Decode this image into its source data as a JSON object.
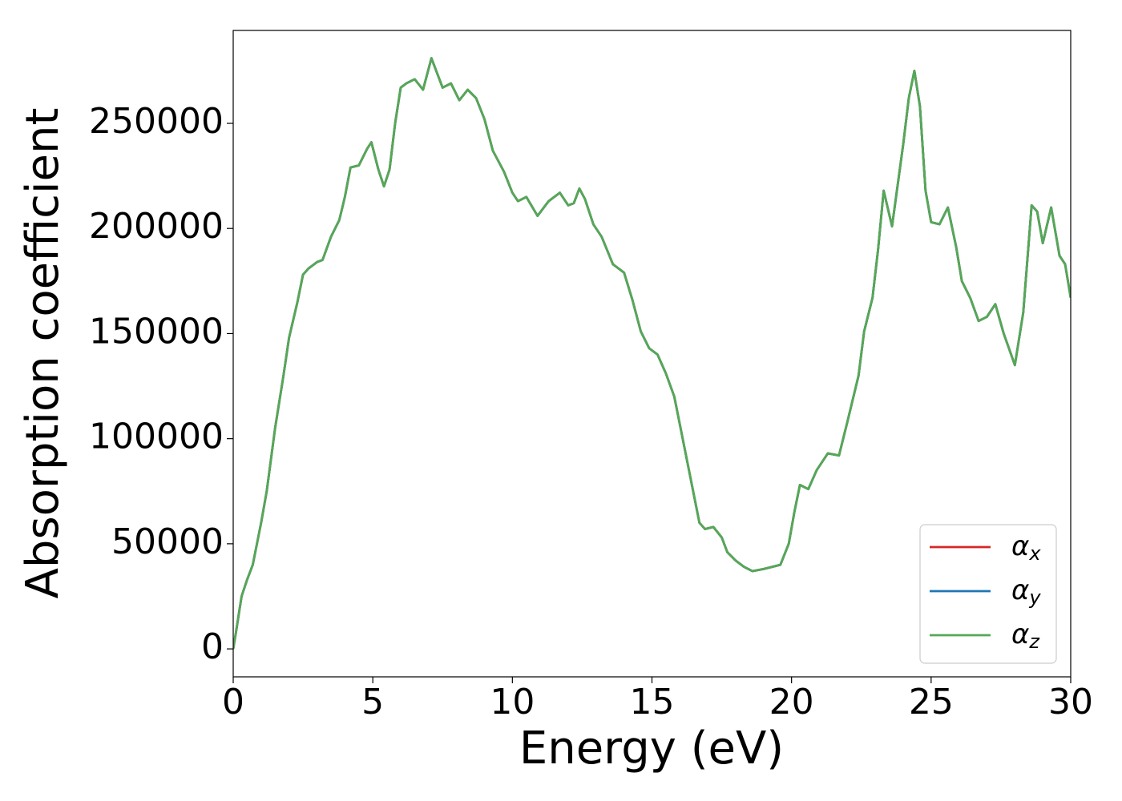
{
  "chart_data": {
    "type": "line",
    "xlabel": "Energy (eV)",
    "ylabel": "Absorption coefficient",
    "x": [
      0,
      0.1,
      0.3,
      0.5,
      0.7,
      1.0,
      1.2,
      1.5,
      1.8,
      2.0,
      2.3,
      2.5,
      2.7,
      3.0,
      3.2,
      3.5,
      3.8,
      4.0,
      4.2,
      4.5,
      4.8,
      4.95,
      5.2,
      5.4,
      5.6,
      5.8,
      6.0,
      6.2,
      6.5,
      6.8,
      7.1,
      7.3,
      7.5,
      7.8,
      8.1,
      8.4,
      8.7,
      9.0,
      9.3,
      9.7,
      10.0,
      10.2,
      10.5,
      10.9,
      11.3,
      11.7,
      12.0,
      12.2,
      12.4,
      12.6,
      12.9,
      13.2,
      13.6,
      14.0,
      14.3,
      14.6,
      14.9,
      15.2,
      15.5,
      15.8,
      16.1,
      16.4,
      16.7,
      16.9,
      17.2,
      17.5,
      17.7,
      18.0,
      18.3,
      18.6,
      19.0,
      19.3,
      19.6,
      19.9,
      20.1,
      20.3,
      20.6,
      20.9,
      21.3,
      21.7,
      22.0,
      22.4,
      22.6,
      22.9,
      23.1,
      23.3,
      23.6,
      24.0,
      24.2,
      24.4,
      24.6,
      24.8,
      25.0,
      25.3,
      25.6,
      25.9,
      26.1,
      26.4,
      26.7,
      27.0,
      27.3,
      27.6,
      28.0,
      28.3,
      28.6,
      28.8,
      29.0,
      29.3,
      29.6,
      29.8,
      30.0
    ],
    "series": [
      {
        "name": "αx",
        "color": "#d62728",
        "values": [
          0,
          8000,
          25000,
          33000,
          40000,
          60000,
          75000,
          105000,
          130000,
          148000,
          165000,
          178000,
          181000,
          184000,
          185000,
          196000,
          204000,
          215000,
          229000,
          230000,
          238000,
          241000,
          228000,
          220000,
          228000,
          250000,
          267000,
          269000,
          271000,
          266000,
          281000,
          274000,
          267000,
          269000,
          261000,
          266000,
          262000,
          252000,
          237000,
          227000,
          217000,
          213000,
          215000,
          206000,
          213000,
          217000,
          211000,
          212000,
          219000,
          214000,
          202000,
          196000,
          183000,
          179000,
          166000,
          151000,
          143000,
          140000,
          131000,
          120000,
          100000,
          80000,
          60000,
          57000,
          58000,
          53000,
          46000,
          42000,
          39000,
          37000,
          38000,
          39000,
          40000,
          50000,
          65000,
          78000,
          76000,
          85000,
          93000,
          92000,
          108000,
          130000,
          151000,
          167000,
          190000,
          218000,
          201000,
          240000,
          262000,
          275000,
          258000,
          218000,
          203000,
          202000,
          210000,
          191000,
          175000,
          167000,
          156000,
          158000,
          164000,
          150000,
          135000,
          160000,
          211000,
          208000,
          193000,
          210000,
          187000,
          183000,
          167000
        ]
      },
      {
        "name": "αy",
        "color": "#1f77b4",
        "values": [
          0,
          8000,
          25000,
          33000,
          40000,
          60000,
          75000,
          105000,
          130000,
          148000,
          165000,
          178000,
          181000,
          184000,
          185000,
          196000,
          204000,
          215000,
          229000,
          230000,
          238000,
          241000,
          228000,
          220000,
          228000,
          250000,
          267000,
          269000,
          271000,
          266000,
          281000,
          274000,
          267000,
          269000,
          261000,
          266000,
          262000,
          252000,
          237000,
          227000,
          217000,
          213000,
          215000,
          206000,
          213000,
          217000,
          211000,
          212000,
          219000,
          214000,
          202000,
          196000,
          183000,
          179000,
          166000,
          151000,
          143000,
          140000,
          131000,
          120000,
          100000,
          80000,
          60000,
          57000,
          58000,
          53000,
          46000,
          42000,
          39000,
          37000,
          38000,
          39000,
          40000,
          50000,
          65000,
          78000,
          76000,
          85000,
          93000,
          92000,
          108000,
          130000,
          151000,
          167000,
          190000,
          218000,
          201000,
          240000,
          262000,
          275000,
          258000,
          218000,
          203000,
          202000,
          210000,
          191000,
          175000,
          167000,
          156000,
          158000,
          164000,
          150000,
          135000,
          160000,
          211000,
          208000,
          193000,
          210000,
          187000,
          183000,
          167000
        ]
      },
      {
        "name": "αz",
        "color": "#55a855",
        "values": [
          0,
          8000,
          25000,
          33000,
          40000,
          60000,
          75000,
          105000,
          130000,
          148000,
          165000,
          178000,
          181000,
          184000,
          185000,
          196000,
          204000,
          215000,
          229000,
          230000,
          238000,
          241000,
          228000,
          220000,
          228000,
          250000,
          267000,
          269000,
          271000,
          266000,
          281000,
          274000,
          267000,
          269000,
          261000,
          266000,
          262000,
          252000,
          237000,
          227000,
          217000,
          213000,
          215000,
          206000,
          213000,
          217000,
          211000,
          212000,
          219000,
          214000,
          202000,
          196000,
          183000,
          179000,
          166000,
          151000,
          143000,
          140000,
          131000,
          120000,
          100000,
          80000,
          60000,
          57000,
          58000,
          53000,
          46000,
          42000,
          39000,
          37000,
          38000,
          39000,
          40000,
          50000,
          65000,
          78000,
          76000,
          85000,
          93000,
          92000,
          108000,
          130000,
          151000,
          167000,
          190000,
          218000,
          201000,
          240000,
          262000,
          275000,
          258000,
          218000,
          203000,
          202000,
          210000,
          191000,
          175000,
          167000,
          156000,
          158000,
          164000,
          150000,
          135000,
          160000,
          211000,
          208000,
          193000,
          210000,
          187000,
          183000,
          167000
        ]
      }
    ],
    "xlim": [
      0,
      30
    ],
    "xticks": [
      0,
      5,
      10,
      15,
      20,
      25,
      30
    ],
    "ylim": [
      -13300,
      294200
    ],
    "yticks": [
      0,
      50000,
      100000,
      150000,
      200000,
      250000
    ],
    "legend": "lower right"
  }
}
